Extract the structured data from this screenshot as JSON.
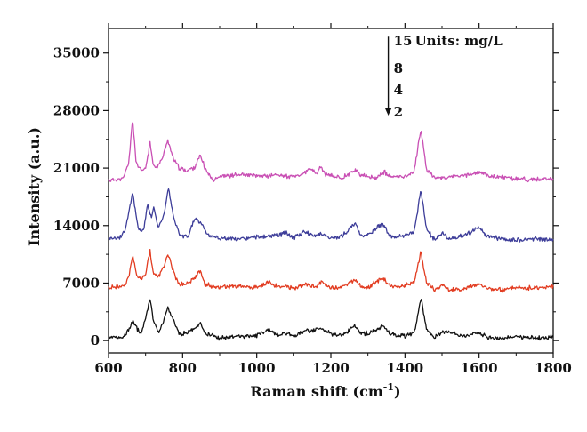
{
  "chart_data": {
    "type": "line",
    "title": "",
    "xlabel": "Raman shift (cm",
    "xlabel_sup": "-1",
    "xlabel_close": ")",
    "ylabel": "Intensity (a.u.)",
    "xlim": [
      600,
      1800
    ],
    "ylim": [
      -1500,
      38000
    ],
    "x_ticks": [
      600,
      800,
      1000,
      1200,
      1400,
      1600,
      1800
    ],
    "x_tick_labels": [
      "600",
      "800",
      "1000",
      "1200",
      "1400",
      "1600",
      "1800"
    ],
    "y_ticks": [
      0,
      7000,
      14000,
      21000,
      28000,
      35000
    ],
    "y_tick_labels": [
      "0",
      "7000",
      "14000",
      "21000",
      "28000",
      "35000"
    ],
    "grid": false,
    "legend": {
      "units_label": "Units: mg/L",
      "entries": [
        "15",
        "8",
        "4",
        "2"
      ],
      "placement": "top-right"
    },
    "annotation": {
      "type": "downward-arrow",
      "x": 1355,
      "y_start": 37000,
      "y_end": 27400
    },
    "series": [
      {
        "name": "15",
        "color": "#c94fb4",
        "baseline": 19500,
        "points": [
          [
            600,
            19500
          ],
          [
            640,
            19700
          ],
          [
            655,
            21800
          ],
          [
            665,
            27000
          ],
          [
            675,
            21500
          ],
          [
            690,
            20600
          ],
          [
            700,
            21000
          ],
          [
            712,
            24000
          ],
          [
            722,
            21200
          ],
          [
            735,
            21300
          ],
          [
            748,
            22500
          ],
          [
            760,
            24500
          ],
          [
            772,
            22500
          ],
          [
            790,
            21000
          ],
          [
            810,
            20700
          ],
          [
            830,
            21000
          ],
          [
            848,
            22500
          ],
          [
            860,
            21000
          ],
          [
            880,
            19600
          ],
          [
            900,
            20000
          ],
          [
            930,
            20100
          ],
          [
            960,
            20200
          ],
          [
            1000,
            20000
          ],
          [
            1040,
            20100
          ],
          [
            1060,
            20200
          ],
          [
            1080,
            20000
          ],
          [
            1100,
            19900
          ],
          [
            1130,
            20400
          ],
          [
            1145,
            21000
          ],
          [
            1160,
            20200
          ],
          [
            1172,
            21200
          ],
          [
            1185,
            20200
          ],
          [
            1200,
            20100
          ],
          [
            1230,
            19800
          ],
          [
            1265,
            20800
          ],
          [
            1280,
            20200
          ],
          [
            1300,
            19900
          ],
          [
            1320,
            19800
          ],
          [
            1345,
            20500
          ],
          [
            1360,
            19900
          ],
          [
            1400,
            20000
          ],
          [
            1425,
            20600
          ],
          [
            1443,
            25800
          ],
          [
            1458,
            20900
          ],
          [
            1480,
            19800
          ],
          [
            1520,
            19900
          ],
          [
            1560,
            20100
          ],
          [
            1600,
            20500
          ],
          [
            1630,
            20000
          ],
          [
            1700,
            19700
          ],
          [
            1750,
            19600
          ],
          [
            1800,
            19600
          ]
        ]
      },
      {
        "name": "8",
        "color": "#3d3d99",
        "baseline": 12500,
        "points": [
          [
            600,
            12500
          ],
          [
            630,
            12500
          ],
          [
            645,
            13500
          ],
          [
            665,
            18000
          ],
          [
            680,
            13600
          ],
          [
            695,
            13400
          ],
          [
            705,
            16600
          ],
          [
            715,
            15000
          ],
          [
            722,
            16300
          ],
          [
            735,
            13600
          ],
          [
            750,
            15500
          ],
          [
            762,
            18600
          ],
          [
            775,
            15000
          ],
          [
            795,
            12600
          ],
          [
            815,
            12700
          ],
          [
            832,
            14900
          ],
          [
            850,
            14300
          ],
          [
            870,
            12800
          ],
          [
            900,
            12500
          ],
          [
            950,
            12300
          ],
          [
            1000,
            12600
          ],
          [
            1040,
            12700
          ],
          [
            1080,
            13100
          ],
          [
            1100,
            12500
          ],
          [
            1130,
            13300
          ],
          [
            1150,
            12700
          ],
          [
            1175,
            13100
          ],
          [
            1200,
            12400
          ],
          [
            1230,
            12700
          ],
          [
            1265,
            14300
          ],
          [
            1280,
            12800
          ],
          [
            1300,
            12900
          ],
          [
            1320,
            13600
          ],
          [
            1340,
            14300
          ],
          [
            1360,
            12600
          ],
          [
            1400,
            12700
          ],
          [
            1425,
            13300
          ],
          [
            1443,
            18400
          ],
          [
            1458,
            13600
          ],
          [
            1480,
            12200
          ],
          [
            1500,
            13100
          ],
          [
            1520,
            12400
          ],
          [
            1560,
            12800
          ],
          [
            1600,
            13700
          ],
          [
            1620,
            12700
          ],
          [
            1660,
            12400
          ],
          [
            1700,
            12200
          ],
          [
            1750,
            12400
          ],
          [
            1800,
            12300
          ]
        ]
      },
      {
        "name": "4",
        "color": "#e23c21",
        "baseline": 6500,
        "points": [
          [
            600,
            6500
          ],
          [
            640,
            6600
          ],
          [
            655,
            7600
          ],
          [
            665,
            10400
          ],
          [
            678,
            7700
          ],
          [
            690,
            7500
          ],
          [
            700,
            8200
          ],
          [
            712,
            10900
          ],
          [
            722,
            8100
          ],
          [
            735,
            7800
          ],
          [
            748,
            8800
          ],
          [
            760,
            10500
          ],
          [
            772,
            8800
          ],
          [
            790,
            6800
          ],
          [
            810,
            6900
          ],
          [
            830,
            7600
          ],
          [
            848,
            8400
          ],
          [
            860,
            6800
          ],
          [
            900,
            6500
          ],
          [
            950,
            6600
          ],
          [
            1000,
            6400
          ],
          [
            1030,
            7200
          ],
          [
            1050,
            6700
          ],
          [
            1080,
            6500
          ],
          [
            1100,
            6300
          ],
          [
            1130,
            6800
          ],
          [
            1160,
            6600
          ],
          [
            1175,
            7200
          ],
          [
            1200,
            6400
          ],
          [
            1230,
            6500
          ],
          [
            1265,
            7400
          ],
          [
            1280,
            6600
          ],
          [
            1300,
            6400
          ],
          [
            1320,
            7100
          ],
          [
            1340,
            7600
          ],
          [
            1360,
            6600
          ],
          [
            1400,
            6700
          ],
          [
            1425,
            7100
          ],
          [
            1443,
            10800
          ],
          [
            1458,
            7100
          ],
          [
            1480,
            6200
          ],
          [
            1500,
            6700
          ],
          [
            1520,
            6100
          ],
          [
            1560,
            6300
          ],
          [
            1600,
            6900
          ],
          [
            1620,
            6400
          ],
          [
            1660,
            6200
          ],
          [
            1700,
            6500
          ],
          [
            1750,
            6400
          ],
          [
            1800,
            6600
          ]
        ]
      },
      {
        "name": "2",
        "color": "#111111",
        "baseline": 300,
        "points": [
          [
            600,
            300
          ],
          [
            640,
            500
          ],
          [
            655,
            1300
          ],
          [
            665,
            2500
          ],
          [
            676,
            1500
          ],
          [
            688,
            800
          ],
          [
            698,
            2300
          ],
          [
            712,
            5100
          ],
          [
            722,
            2300
          ],
          [
            735,
            900
          ],
          [
            748,
            2300
          ],
          [
            760,
            4000
          ],
          [
            772,
            2800
          ],
          [
            790,
            800
          ],
          [
            810,
            900
          ],
          [
            830,
            1500
          ],
          [
            848,
            2100
          ],
          [
            860,
            900
          ],
          [
            900,
            300
          ],
          [
            950,
            500
          ],
          [
            1000,
            600
          ],
          [
            1030,
            1300
          ],
          [
            1050,
            700
          ],
          [
            1080,
            900
          ],
          [
            1100,
            500
          ],
          [
            1130,
            1200
          ],
          [
            1160,
            1300
          ],
          [
            1175,
            1500
          ],
          [
            1200,
            800
          ],
          [
            1230,
            700
          ],
          [
            1265,
            1800
          ],
          [
            1280,
            800
          ],
          [
            1300,
            900
          ],
          [
            1320,
            1300
          ],
          [
            1340,
            1800
          ],
          [
            1360,
            800
          ],
          [
            1400,
            600
          ],
          [
            1425,
            900
          ],
          [
            1443,
            5200
          ],
          [
            1458,
            1300
          ],
          [
            1480,
            500
          ],
          [
            1500,
            900
          ],
          [
            1520,
            1100
          ],
          [
            1560,
            500
          ],
          [
            1600,
            1100
          ],
          [
            1620,
            400
          ],
          [
            1660,
            300
          ],
          [
            1700,
            500
          ],
          [
            1750,
            300
          ],
          [
            1800,
            400
          ]
        ]
      }
    ]
  }
}
